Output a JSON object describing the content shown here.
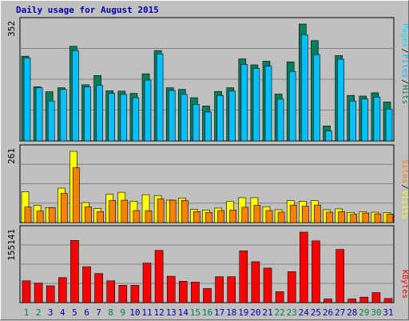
{
  "title": "Daily usage for August 2015",
  "colors": {
    "hits": "#00805c",
    "files": "#00c0ff",
    "pages": "#00e0ff",
    "visits": "#ffff00",
    "sites": "#ff8000",
    "kbytes": "#ff0000",
    "weekend_label": "#00805c",
    "weekday_label": "#0000b0"
  },
  "chart_data": [
    {
      "type": "bar",
      "name": "hits-files-pages",
      "categories": [
        "1",
        "2",
        "3",
        "4",
        "5",
        "6",
        "7",
        "8",
        "9",
        "10",
        "11",
        "12",
        "13",
        "14",
        "15",
        "16",
        "17",
        "18",
        "19",
        "20",
        "21",
        "22",
        "23",
        "24",
        "25",
        "26",
        "27",
        "28",
        "29",
        "30",
        "31"
      ],
      "ytick": "352",
      "ymax": 352,
      "legend": [
        "Pages",
        "/",
        "Files",
        "/",
        "Hits"
      ],
      "series": [
        {
          "name": "Hits",
          "values": [
            255,
            163,
            148,
            160,
            285,
            169,
            197,
            151,
            150,
            143,
            202,
            272,
            160,
            155,
            130,
            105,
            149,
            160,
            247,
            229,
            240,
            141,
            238,
            352,
            302,
            45,
            257,
            137,
            135,
            145,
            117
          ]
        },
        {
          "name": "Files",
          "values": [
            250,
            160,
            120,
            155,
            272,
            163,
            167,
            143,
            140,
            130,
            183,
            262,
            152,
            140,
            110,
            87,
            137,
            150,
            230,
            218,
            225,
            126,
            209,
            320,
            260,
            30,
            246,
            120,
            126,
            132,
            96
          ]
        },
        {
          "name": "Pages",
          "values": [
            250,
            160,
            120,
            155,
            272,
            163,
            167,
            143,
            140,
            130,
            183,
            262,
            152,
            140,
            110,
            87,
            137,
            150,
            230,
            218,
            225,
            126,
            209,
            320,
            260,
            30,
            246,
            120,
            126,
            132,
            96
          ]
        }
      ]
    },
    {
      "type": "bar",
      "name": "visits-sites",
      "ytick": "261",
      "ymax": 261,
      "legend": [
        "Sites",
        "/",
        "Visits"
      ],
      "series": [
        {
          "name": "Visits",
          "values": [
            113,
            63,
            55,
            126,
            261,
            73,
            51,
            104,
            111,
            78,
            102,
            99,
            82,
            90,
            48,
            46,
            53,
            78,
            91,
            91,
            58,
            47,
            80,
            78,
            80,
            47,
            50,
            37,
            40,
            38,
            37
          ]
        },
        {
          "name": "Sites",
          "values": [
            57,
            42,
            55,
            107,
            201,
            58,
            40,
            81,
            82,
            44,
            43,
            86,
            82,
            81,
            40,
            37,
            44,
            46,
            56,
            63,
            44,
            38,
            64,
            60,
            64,
            38,
            40,
            30,
            35,
            32,
            31
          ]
        }
      ]
    },
    {
      "type": "bar",
      "name": "kbytes",
      "ytick": "155141",
      "ymax": 155141,
      "legend": [
        "KBytes"
      ],
      "series": [
        {
          "name": "KBytes",
          "values": [
            48000,
            43000,
            37000,
            55000,
            137000,
            79000,
            64000,
            48000,
            38000,
            38000,
            87000,
            115000,
            58000,
            47000,
            45000,
            31000,
            57000,
            57000,
            114000,
            90000,
            76000,
            24000,
            68000,
            155141,
            136000,
            8000,
            117000,
            8000,
            12000,
            22000,
            9000
          ]
        }
      ]
    }
  ],
  "weekend_days": [
    1,
    2,
    8,
    9,
    15,
    16,
    22,
    23,
    29,
    30
  ]
}
